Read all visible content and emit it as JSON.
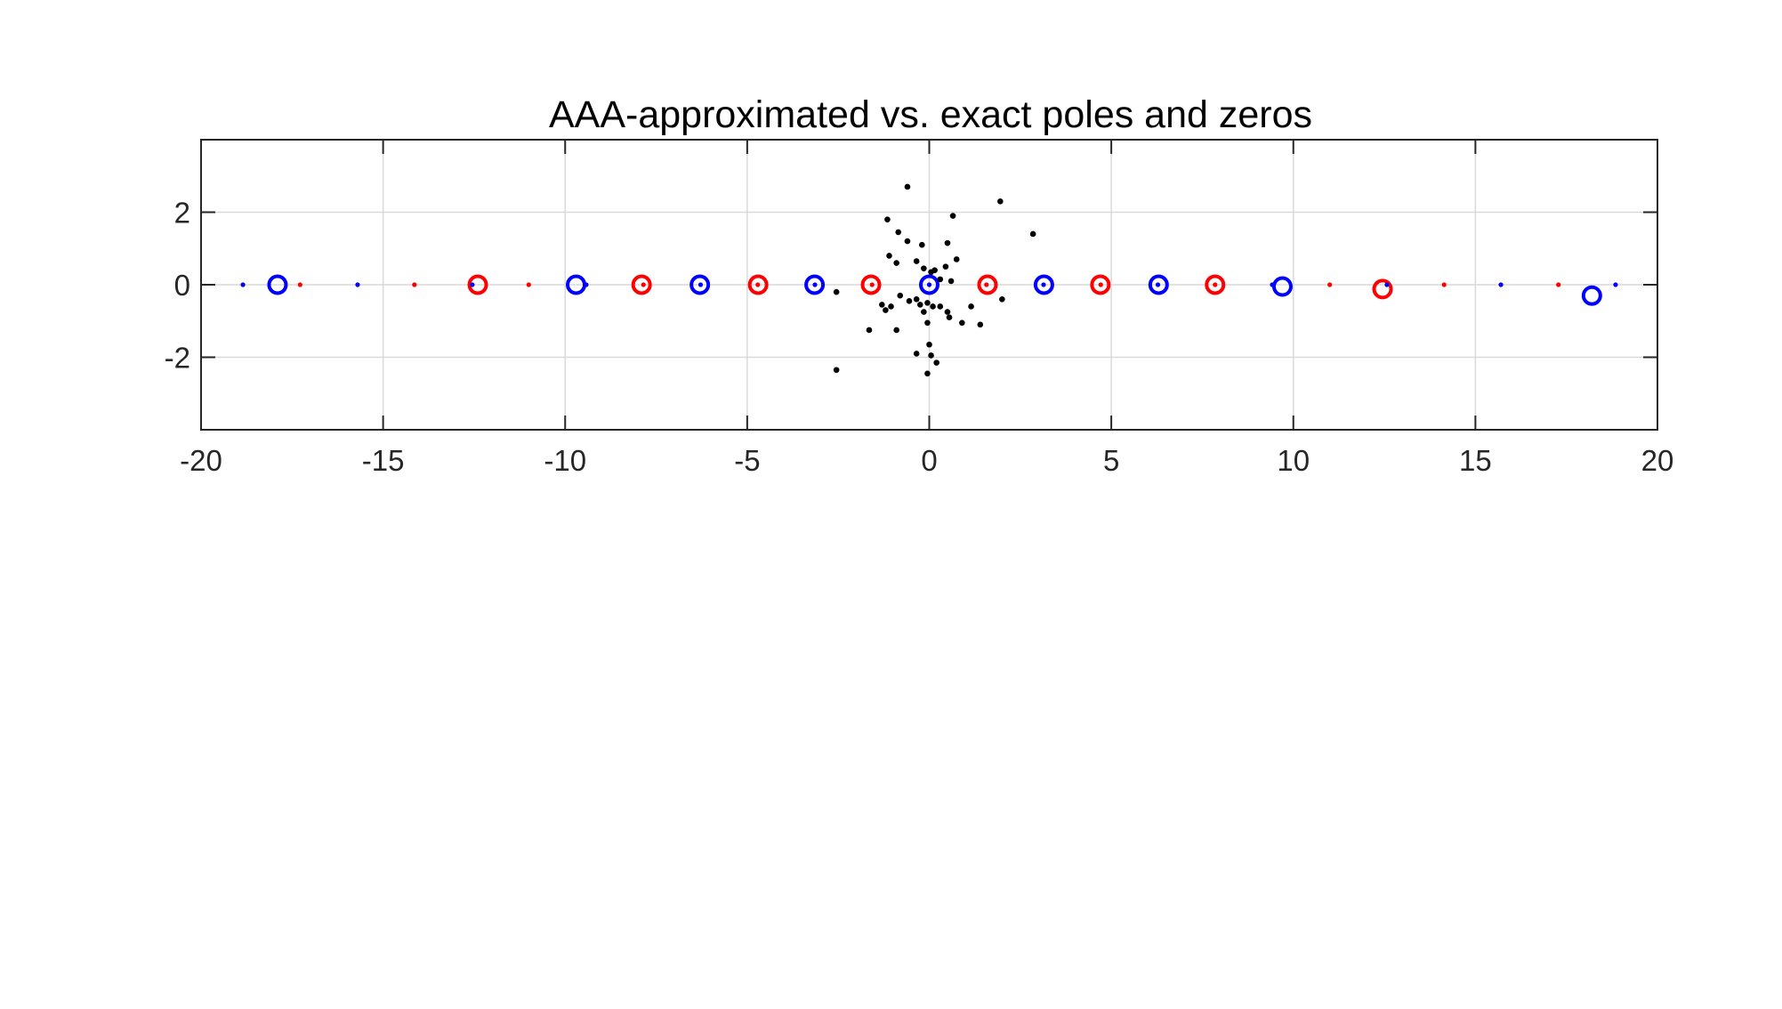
{
  "chart_data": {
    "type": "scatter",
    "title": "AAA-approximated vs. exact poles and zeros",
    "xlabel": "",
    "ylabel": "",
    "xlim": [
      -20,
      20
    ],
    "ylim": [
      -4,
      4
    ],
    "xticks": [
      -20,
      -15,
      -10,
      -5,
      0,
      5,
      10,
      15,
      20
    ],
    "xtick_labels": [
      "-20",
      "-15",
      "-10",
      "-5",
      "0",
      "5",
      "10",
      "15",
      "20"
    ],
    "yticks": [
      -2,
      0,
      2
    ],
    "ytick_labels": [
      "-2",
      "0",
      "2"
    ],
    "grid": true,
    "legend": "none",
    "colors": {
      "blue": "#0000ff",
      "red": "#ff0000",
      "black": "#000000"
    },
    "series": [
      {
        "marker": "circle",
        "color": "#0000ff",
        "points": [
          {
            "x": -17.9,
            "y": 0
          },
          {
            "x": -9.7,
            "y": 0
          },
          {
            "x": -6.3,
            "y": 0
          },
          {
            "x": -3.15,
            "y": 0
          },
          {
            "x": 0,
            "y": 0
          },
          {
            "x": 3.15,
            "y": 0
          },
          {
            "x": 6.3,
            "y": 0
          },
          {
            "x": 9.7,
            "y": -0.05
          },
          {
            "x": 18.2,
            "y": -0.3
          }
        ]
      },
      {
        "marker": "circle",
        "color": "#ff0000",
        "points": [
          {
            "x": -12.4,
            "y": 0
          },
          {
            "x": -7.9,
            "y": 0
          },
          {
            "x": -4.7,
            "y": 0
          },
          {
            "x": -1.6,
            "y": 0
          },
          {
            "x": 1.6,
            "y": 0
          },
          {
            "x": 4.7,
            "y": 0
          },
          {
            "x": 7.85,
            "y": 0
          },
          {
            "x": 12.45,
            "y": -0.12
          }
        ]
      },
      {
        "marker": "dot",
        "color": "#0000ff",
        "points": [
          {
            "x": -18.85,
            "y": 0
          },
          {
            "x": -15.7,
            "y": 0
          },
          {
            "x": -12.55,
            "y": 0
          },
          {
            "x": -9.42,
            "y": 0
          },
          {
            "x": -6.28,
            "y": 0
          },
          {
            "x": -3.14,
            "y": 0
          },
          {
            "x": 0,
            "y": 0
          },
          {
            "x": 3.14,
            "y": 0
          },
          {
            "x": 6.28,
            "y": 0
          },
          {
            "x": 9.42,
            "y": 0
          },
          {
            "x": 12.57,
            "y": 0
          },
          {
            "x": 15.7,
            "y": 0
          },
          {
            "x": 18.85,
            "y": 0
          }
        ]
      },
      {
        "marker": "dot",
        "color": "#ff0000",
        "points": [
          {
            "x": -17.28,
            "y": 0
          },
          {
            "x": -14.14,
            "y": 0
          },
          {
            "x": -11.0,
            "y": 0
          },
          {
            "x": -7.85,
            "y": 0
          },
          {
            "x": -4.71,
            "y": 0
          },
          {
            "x": -1.57,
            "y": 0
          },
          {
            "x": 1.57,
            "y": 0
          },
          {
            "x": 4.71,
            "y": 0
          },
          {
            "x": 7.85,
            "y": 0
          },
          {
            "x": 11.0,
            "y": 0
          },
          {
            "x": 14.14,
            "y": 0
          },
          {
            "x": 17.28,
            "y": 0
          }
        ]
      },
      {
        "marker": "dot",
        "color": "#000000",
        "points": [
          {
            "x": -0.6,
            "y": 2.7
          },
          {
            "x": 1.95,
            "y": 2.3
          },
          {
            "x": 0.65,
            "y": 1.9
          },
          {
            "x": -1.15,
            "y": 1.8
          },
          {
            "x": 2.85,
            "y": 1.4
          },
          {
            "x": -0.85,
            "y": 1.45
          },
          {
            "x": -0.6,
            "y": 1.2
          },
          {
            "x": -0.2,
            "y": 1.1
          },
          {
            "x": 0.5,
            "y": 1.15
          },
          {
            "x": -1.1,
            "y": 0.8
          },
          {
            "x": -0.9,
            "y": 0.6
          },
          {
            "x": -0.35,
            "y": 0.65
          },
          {
            "x": 0.75,
            "y": 0.7
          },
          {
            "x": -0.15,
            "y": 0.45
          },
          {
            "x": 0.05,
            "y": 0.35
          },
          {
            "x": 0.45,
            "y": 0.5
          },
          {
            "x": 0.15,
            "y": 0.4
          },
          {
            "x": 0.3,
            "y": 0.15
          },
          {
            "x": 0.6,
            "y": 0.1
          },
          {
            "x": -2.55,
            "y": -0.2
          },
          {
            "x": -0.8,
            "y": -0.3
          },
          {
            "x": -0.55,
            "y": -0.45
          },
          {
            "x": -0.35,
            "y": -0.4
          },
          {
            "x": -0.25,
            "y": -0.55
          },
          {
            "x": -0.05,
            "y": -0.5
          },
          {
            "x": -1.3,
            "y": -0.55
          },
          {
            "x": -1.05,
            "y": -0.6
          },
          {
            "x": -1.2,
            "y": -0.7
          },
          {
            "x": -0.15,
            "y": -0.75
          },
          {
            "x": 0.1,
            "y": -0.6
          },
          {
            "x": 0.3,
            "y": -0.6
          },
          {
            "x": 1.15,
            "y": -0.6
          },
          {
            "x": 0.5,
            "y": -0.75
          },
          {
            "x": 0.55,
            "y": -0.9
          },
          {
            "x": 0.9,
            "y": -1.05
          },
          {
            "x": 1.4,
            "y": -1.1
          },
          {
            "x": 2.0,
            "y": -0.4
          },
          {
            "x": -0.05,
            "y": -1.05
          },
          {
            "x": -1.65,
            "y": -1.25
          },
          {
            "x": -0.9,
            "y": -1.25
          },
          {
            "x": 0.0,
            "y": -1.65
          },
          {
            "x": -0.35,
            "y": -1.9
          },
          {
            "x": 0.05,
            "y": -1.95
          },
          {
            "x": 0.2,
            "y": -2.15
          },
          {
            "x": -2.55,
            "y": -2.35
          },
          {
            "x": -0.05,
            "y": -2.45
          }
        ]
      }
    ]
  }
}
